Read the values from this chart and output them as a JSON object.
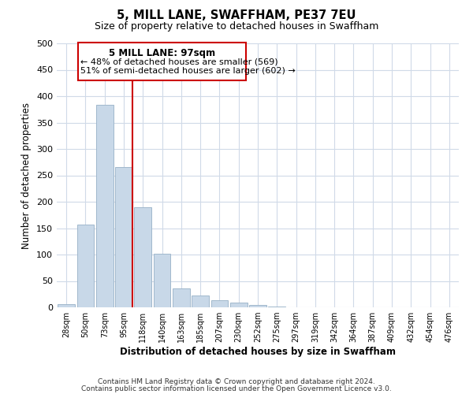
{
  "title": "5, MILL LANE, SWAFFHAM, PE37 7EU",
  "subtitle": "Size of property relative to detached houses in Swaffham",
  "xlabel": "Distribution of detached houses by size in Swaffham",
  "ylabel": "Number of detached properties",
  "bar_color": "#c8d8e8",
  "bar_edge_color": "#a0b8cc",
  "vline_color": "#cc0000",
  "vline_bar_index": 3,
  "categories": [
    "28sqm",
    "50sqm",
    "73sqm",
    "95sqm",
    "118sqm",
    "140sqm",
    "163sqm",
    "185sqm",
    "207sqm",
    "230sqm",
    "252sqm",
    "275sqm",
    "297sqm",
    "319sqm",
    "342sqm",
    "364sqm",
    "387sqm",
    "409sqm",
    "432sqm",
    "454sqm",
    "476sqm"
  ],
  "bar_heights": [
    6,
    157,
    384,
    265,
    190,
    102,
    36,
    22,
    13,
    9,
    5,
    1,
    0,
    0,
    0,
    0,
    0,
    0,
    0,
    0,
    0
  ],
  "ylim": [
    0,
    500
  ],
  "yticks": [
    0,
    50,
    100,
    150,
    200,
    250,
    300,
    350,
    400,
    450,
    500
  ],
  "annotation_title": "5 MILL LANE: 97sqm",
  "annotation_line1": "← 48% of detached houses are smaller (569)",
  "annotation_line2": "51% of semi-detached houses are larger (602) →",
  "annotation_box_color": "#ffffff",
  "annotation_box_edge": "#cc0000",
  "footer1": "Contains HM Land Registry data © Crown copyright and database right 2024.",
  "footer2": "Contains public sector information licensed under the Open Government Licence v3.0.",
  "background_color": "#ffffff",
  "grid_color": "#d0dae8"
}
